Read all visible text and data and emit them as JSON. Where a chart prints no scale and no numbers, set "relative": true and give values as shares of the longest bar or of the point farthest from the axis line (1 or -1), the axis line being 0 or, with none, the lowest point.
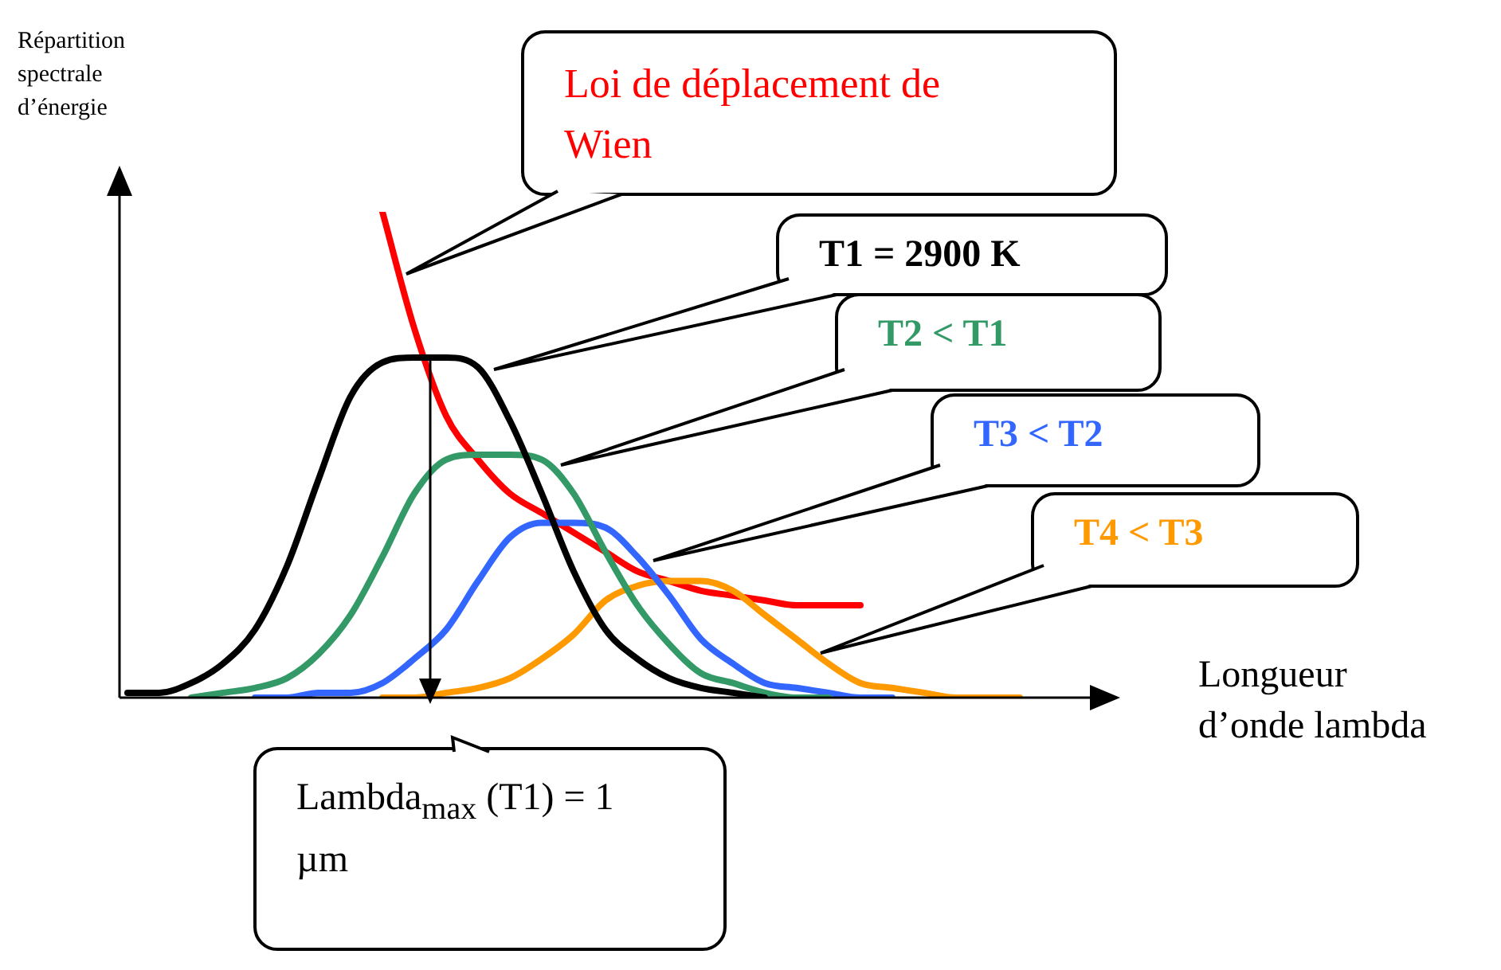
{
  "chart_data": {
    "type": "line",
    "relative": true,
    "xlabel": "Longueur d’onde lambda",
    "ylabel": "Répartition spectrale d’énergie",
    "categories": [
      null,
      null,
      null,
      null,
      null,
      null,
      null,
      null,
      null,
      null,
      null,
      null,
      null,
      null,
      null,
      null,
      null,
      null,
      null,
      null,
      null,
      null,
      null,
      null,
      null,
      null,
      null,
      null,
      null
    ],
    "series": [
      {
        "name": "T1 = 2900 K",
        "color": "#000000",
        "values": [
          0.01,
          0.01,
          0.03,
          0.07,
          0.14,
          0.27,
          0.45,
          0.62,
          0.69,
          0.7,
          0.7,
          0.68,
          0.57,
          0.42,
          0.26,
          0.14,
          0.08,
          0.04,
          0.02,
          0.01,
          0,
          null,
          null,
          null,
          null,
          null,
          null,
          null,
          null
        ]
      },
      {
        "name": "T2 < T1",
        "color": "#339966",
        "values": [
          null,
          null,
          0,
          0.01,
          0.02,
          0.04,
          0.09,
          0.17,
          0.29,
          0.42,
          0.49,
          0.5,
          0.5,
          0.49,
          0.42,
          0.3,
          0.19,
          0.11,
          0.05,
          0.03,
          0.01,
          0,
          0,
          null,
          null,
          null,
          null,
          null,
          null
        ]
      },
      {
        "name": "T3 < T2",
        "color": "#3366ff",
        "values": [
          null,
          null,
          null,
          null,
          0,
          0,
          0.01,
          0.01,
          0.03,
          0.08,
          0.14,
          0.24,
          0.33,
          0.36,
          0.36,
          0.35,
          0.29,
          0.21,
          0.12,
          0.07,
          0.03,
          0.02,
          0.01,
          0,
          0,
          null,
          null,
          null,
          null
        ]
      },
      {
        "name": "T4 < T3",
        "color": "#ff9900",
        "values": [
          null,
          null,
          null,
          null,
          null,
          null,
          null,
          null,
          0,
          0,
          0.01,
          0.02,
          0.04,
          0.08,
          0.13,
          0.2,
          0.23,
          0.24,
          0.24,
          0.22,
          0.17,
          0.12,
          0.07,
          0.03,
          0.02,
          0.01,
          0,
          0,
          0
        ]
      },
      {
        "name": "Loi de déplacement de Wien",
        "color": "#ff0000",
        "values": [
          null,
          null,
          null,
          null,
          null,
          null,
          null,
          null,
          1,
          0.76,
          0.58,
          0.49,
          0.42,
          0.38,
          0.34,
          0.3,
          0.26,
          0.24,
          0.22,
          0.21,
          0.2,
          0.19,
          0.19,
          0.19,
          null,
          null,
          null,
          null,
          null
        ]
      }
    ],
    "annotations": [
      "Lambda$_{max}$ (T1) = 1 µm"
    ],
    "legend": false
  }
}
